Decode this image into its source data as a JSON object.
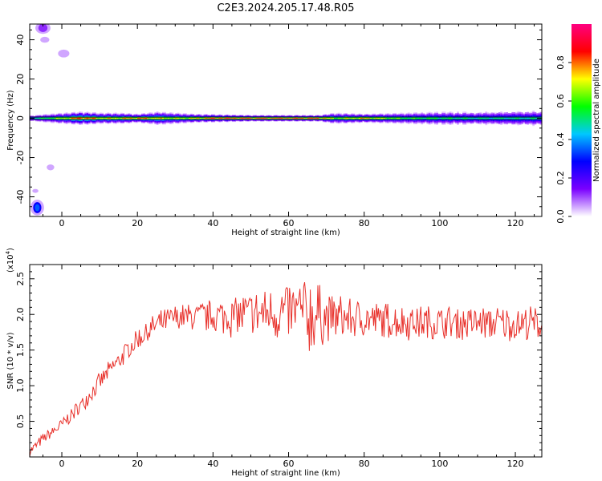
{
  "figure": {
    "title": "C2E3.2024.205.17.48.R05"
  },
  "chart_data": [
    {
      "type": "heatmap",
      "xlabel": "Height of straight line (km)",
      "ylabel": "Frequency (Hz)",
      "xlim": [
        -8.5,
        127
      ],
      "ylim": [
        -50,
        48
      ],
      "xticks": [
        0,
        20,
        40,
        60,
        80,
        100,
        120
      ],
      "yticks": [
        -40,
        -20,
        0,
        20,
        40
      ],
      "ytick_labels": [
        "-40",
        "-20",
        "0",
        "20",
        "40"
      ],
      "colorbar": {
        "label": "Normalized spectral amplitude",
        "range": [
          0,
          1
        ],
        "ticks": [
          0.0,
          0.2,
          0.4,
          0.6,
          0.8
        ],
        "tick_labels": [
          "0.0",
          "0.2",
          "0.4",
          "0.6",
          "0.8"
        ],
        "colormap": [
          "#ffffff",
          "#7a00ff",
          "#0000ff",
          "#00c8ff",
          "#00ff00",
          "#ffff00",
          "#ff0000",
          "#ff0080"
        ]
      },
      "band_center_hz": 0,
      "band": [
        {
          "x": -8,
          "halfwidth_hz": 1.5,
          "peak": 0.55
        },
        {
          "x": 0,
          "halfwidth_hz": 2.5,
          "peak": 0.75
        },
        {
          "x": 5,
          "halfwidth_hz": 3,
          "peak": 0.95
        },
        {
          "x": 10,
          "halfwidth_hz": 2.5,
          "peak": 0.8
        },
        {
          "x": 15,
          "halfwidth_hz": 2.5,
          "peak": 0.8
        },
        {
          "x": 20,
          "halfwidth_hz": 2,
          "peak": 0.9
        },
        {
          "x": 25,
          "halfwidth_hz": 3,
          "peak": 0.8
        },
        {
          "x": 30,
          "halfwidth_hz": 2.5,
          "peak": 0.75
        },
        {
          "x": 35,
          "halfwidth_hz": 2,
          "peak": 0.8
        },
        {
          "x": 40,
          "halfwidth_hz": 1.8,
          "peak": 0.95
        },
        {
          "x": 50,
          "halfwidth_hz": 1.5,
          "peak": 0.95
        },
        {
          "x": 60,
          "halfwidth_hz": 1.5,
          "peak": 0.95
        },
        {
          "x": 68,
          "halfwidth_hz": 1.5,
          "peak": 0.95
        },
        {
          "x": 72,
          "halfwidth_hz": 2.5,
          "peak": 0.7
        },
        {
          "x": 80,
          "halfwidth_hz": 2,
          "peak": 0.85
        },
        {
          "x": 90,
          "halfwidth_hz": 2.5,
          "peak": 0.65
        },
        {
          "x": 100,
          "halfwidth_hz": 3,
          "peak": 0.6
        },
        {
          "x": 110,
          "halfwidth_hz": 3,
          "peak": 0.55
        },
        {
          "x": 120,
          "halfwidth_hz": 3.5,
          "peak": 0.55
        },
        {
          "x": 127,
          "halfwidth_hz": 3.5,
          "peak": 0.55
        }
      ],
      "blobs": [
        {
          "x": -5,
          "y": 46,
          "rx": 2,
          "ry": 3,
          "value": 0.15
        },
        {
          "x": -4.5,
          "y": 40,
          "rx": 1.2,
          "ry": 1.5,
          "value": 0.05
        },
        {
          "x": 0.5,
          "y": 33,
          "rx": 1.5,
          "ry": 2,
          "value": 0.05
        },
        {
          "x": -6.5,
          "y": -45.5,
          "rx": 1.8,
          "ry": 4,
          "value": 0.35
        },
        {
          "x": -3,
          "y": -25,
          "rx": 1,
          "ry": 1.5,
          "value": 0.05
        },
        {
          "x": -7,
          "y": -37,
          "rx": 0.8,
          "ry": 1,
          "value": 0.05
        }
      ]
    },
    {
      "type": "line",
      "xlabel": "Height of straight line (km)",
      "ylabel": "SNR (10 * v/v)",
      "y_multiplier": "(x10",
      "y_multiplier_exp": "4",
      "xlim": [
        -8.5,
        127
      ],
      "ylim": [
        0,
        2.7
      ],
      "xticks": [
        0,
        20,
        40,
        60,
        80,
        100,
        120
      ],
      "yticks": [
        0.5,
        1.0,
        1.5,
        2.0,
        2.5
      ],
      "ytick_labels": [
        "0.5",
        "1.0",
        "1.5",
        "2.0",
        "2.5"
      ],
      "series": [
        {
          "color": "#e8312b",
          "x_step": 0.25,
          "envelope_x": [
            -8.5,
            -5,
            0,
            5,
            10,
            15,
            20,
            25,
            30,
            35,
            40,
            50,
            60,
            65,
            70,
            80,
            90,
            100,
            110,
            120,
            127
          ],
          "envelope_y": [
            0.08,
            0.25,
            0.45,
            0.72,
            1.05,
            1.35,
            1.65,
            1.85,
            1.95,
            1.97,
            1.97,
            2.0,
            2.03,
            2.0,
            1.97,
            1.93,
            1.9,
            1.88,
            1.88,
            1.87,
            1.87
          ],
          "noise_x": [
            -8.5,
            20,
            35,
            45,
            55,
            62,
            66,
            70,
            80,
            100,
            127
          ],
          "noise_y": [
            0.05,
            0.12,
            0.15,
            0.22,
            0.28,
            0.35,
            0.45,
            0.25,
            0.2,
            0.18,
            0.18
          ],
          "min": 0.0,
          "max": 2.7
        }
      ]
    }
  ]
}
